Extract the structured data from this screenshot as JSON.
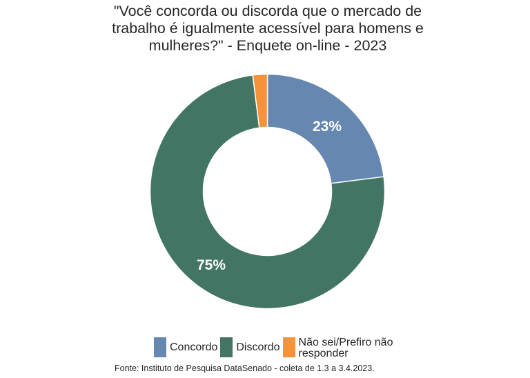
{
  "title": {
    "lines": [
      "\"Você concorda ou discorda que o mercado de",
      "trabalho é igualmente acessível para homens e",
      "mulheres?\" - Enquete on-line - 2023"
    ]
  },
  "legend": {
    "items": [
      {
        "label": "Concordo",
        "color": "#6587B0"
      },
      {
        "label": "Discordo",
        "color": "#427563"
      },
      {
        "label_line1": "Não sei/Prefiro não",
        "label_line2": "responder",
        "color": "#F7913A"
      }
    ]
  },
  "source": "Fonte: Instituto de Pesquisa DataSenado - coleta de 1.3 a 3.4.2023.",
  "slice_labels": {
    "concordo": "23%",
    "discordo": "75%"
  },
  "chart_data": {
    "type": "pie",
    "variant": "donut",
    "title": "\"Você concorda ou discorda que o mercado de trabalho é igualmente acessível para homens e mulheres?\" - Enquete on-line - 2023",
    "categories": [
      "Concordo",
      "Discordo",
      "Não sei/Prefiro não responder"
    ],
    "values": [
      23,
      75,
      2
    ],
    "unit": "%",
    "colors": [
      "#6587B0",
      "#427563",
      "#F7913A"
    ],
    "data_labels": [
      "23%",
      "75%",
      ""
    ],
    "start_angle": "12 o'clock",
    "direction": "clockwise",
    "legend_position": "bottom",
    "source": "Fonte: Instituto de Pesquisa DataSenado - coleta de 1.3 a 3.4.2023."
  }
}
